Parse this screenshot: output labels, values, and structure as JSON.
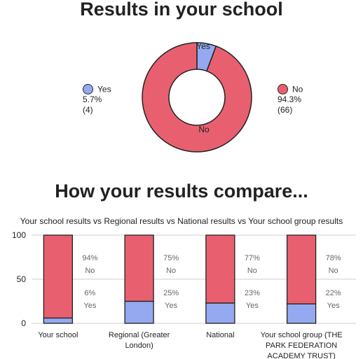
{
  "colors": {
    "yes": "#94a9ef",
    "no": "#e8606f",
    "outline": "#222222",
    "grid": "#cfcfcf"
  },
  "donut": {
    "title": "Results in your school",
    "yes": {
      "label": "Yes",
      "pct": "5.7%",
      "count": "(4)"
    },
    "no": {
      "label": "No",
      "pct": "94.3%",
      "count": "(66)"
    }
  },
  "compare": {
    "title": "How your results compare...",
    "subtitle": "Your school results vs Regional results vs National results vs Your school group results"
  },
  "chart_data": [
    {
      "type": "pie",
      "title": "Results in your school",
      "labels": [
        "Yes",
        "No"
      ],
      "values": [
        5.7,
        94.3
      ],
      "counts": [
        4,
        66
      ]
    },
    {
      "type": "bar",
      "stacked": true,
      "title": "Your school results vs Regional results vs National results vs Your school group results",
      "categories": [
        "Your school",
        "Regional (Greater London)",
        "National",
        "Your school group (THE PARK FEDERATION ACADEMY TRUST)"
      ],
      "category_lines": [
        [
          "Your school"
        ],
        [
          "Regional (Greater",
          "London)"
        ],
        [
          "National"
        ],
        [
          "Your school group (THE",
          "PARK FEDERATION",
          "ACADEMY TRUST)"
        ]
      ],
      "series": [
        {
          "name": "Yes",
          "values": [
            6,
            25,
            23,
            22
          ]
        },
        {
          "name": "No",
          "values": [
            94,
            75,
            77,
            78
          ]
        }
      ],
      "ylim": [
        0,
        100
      ],
      "yticks": [
        0,
        50,
        100
      ],
      "grid": true
    }
  ]
}
